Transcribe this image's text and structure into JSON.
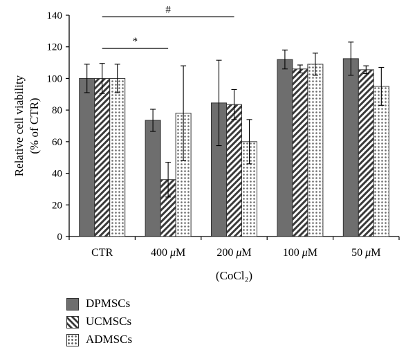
{
  "chart_data": {
    "type": "bar",
    "categories": [
      "CTR",
      "400 μM",
      "200 μM",
      "100 μM",
      "50 μM"
    ],
    "xlabel": "(CoCl₂)",
    "ylabel_lines": [
      "Relative cell viability",
      "(% of CTR)"
    ],
    "ylim": [
      0,
      140
    ],
    "yticks": [
      "0",
      "20",
      "40",
      "60",
      "80",
      "100",
      "120",
      "140"
    ],
    "grid": false,
    "legend_position": "bottom-left",
    "series": [
      {
        "name": "DPMSCs",
        "color": "#6e6e6e",
        "values": [
          100,
          73.5,
          84.5,
          112,
          112.5
        ],
        "errors": [
          9,
          7,
          27,
          6,
          10.5
        ]
      },
      {
        "name": "UCMSCs",
        "color": "#3a3a3a",
        "values": [
          100,
          36,
          83.5,
          106,
          105.5
        ],
        "errors": [
          9.5,
          11,
          9.5,
          2.5,
          2.5
        ]
      },
      {
        "name": "ADMSCs",
        "color": "#6a6a6a",
        "values": [
          100,
          78,
          60,
          109,
          95
        ],
        "errors": [
          9,
          30,
          14,
          7,
          12
        ]
      }
    ],
    "annotations": [
      {
        "label": "*",
        "from": "CTR",
        "to": "400 μM",
        "y": 119
      },
      {
        "label": "#",
        "from": "CTR",
        "to": "200 μM",
        "y": 139
      }
    ]
  }
}
